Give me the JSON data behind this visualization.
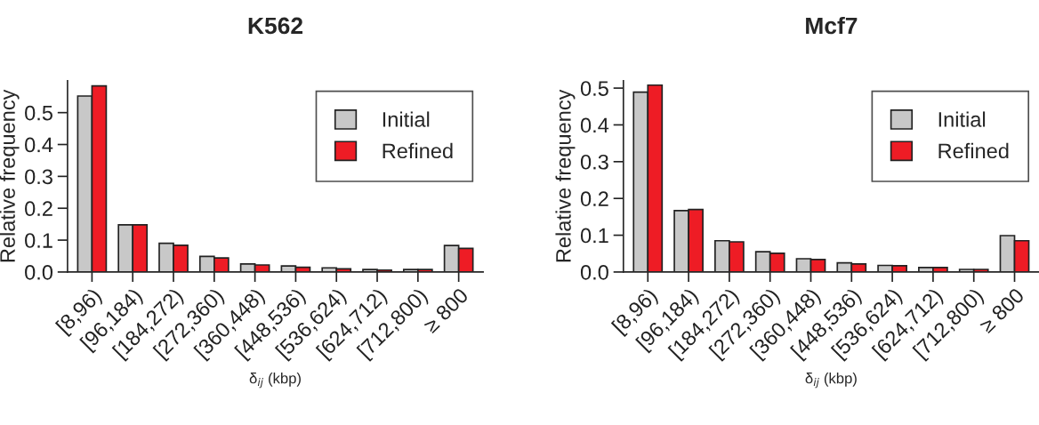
{
  "chart_data": [
    {
      "type": "bar",
      "title": "K562",
      "xlabel": "δ$_{ij}$ (kbp)",
      "ylabel": "Relative frequency",
      "categories": [
        "[8,96)",
        "[96,184)",
        "[184,272)",
        "[272,360)",
        "[360,448)",
        "[448,536)",
        "[536,624)",
        "[624,712)",
        "[712,800)",
        "≥ 800"
      ],
      "series": [
        {
          "name": "Initial",
          "color": "#c8c8c8",
          "values": [
            0.552,
            0.148,
            0.09,
            0.049,
            0.025,
            0.019,
            0.013,
            0.008,
            0.008,
            0.083
          ]
        },
        {
          "name": "Refined",
          "color": "#ee1c25",
          "values": [
            0.584,
            0.148,
            0.084,
            0.044,
            0.022,
            0.015,
            0.01,
            0.006,
            0.008,
            0.074
          ]
        }
      ],
      "ylim": [
        0,
        0.6
      ],
      "yticks": [
        {
          "value": 0,
          "label": "0.0"
        },
        0.1,
        0.2,
        0.3,
        0.4,
        0.5
      ],
      "grid": false,
      "legend": "top right"
    },
    {
      "type": "bar",
      "title": "Mcf7",
      "xlabel": "δ$_{ij}$ (kbp)",
      "ylabel": "Relative frequency",
      "categories": [
        "[8,96)",
        "[96,184)",
        "[184,272)",
        "[272,360)",
        "[360,448)",
        "[448,536)",
        "[536,624)",
        "[624,712)",
        "[712,800)",
        "≥ 800"
      ],
      "series": [
        {
          "name": "Initial",
          "color": "#c8c8c8",
          "values": [
            0.489,
            0.167,
            0.085,
            0.055,
            0.036,
            0.025,
            0.018,
            0.012,
            0.007,
            0.099
          ]
        },
        {
          "name": "Refined",
          "color": "#ee1c25",
          "values": [
            0.508,
            0.17,
            0.082,
            0.051,
            0.034,
            0.022,
            0.017,
            0.012,
            0.007,
            0.085
          ]
        }
      ],
      "ylim": [
        0,
        0.52
      ],
      "yticks": [
        {
          "value": 0,
          "label": "0.0"
        },
        0.1,
        0.2,
        0.3,
        0.4,
        0.5
      ],
      "grid": false,
      "legend": "top right"
    }
  ]
}
